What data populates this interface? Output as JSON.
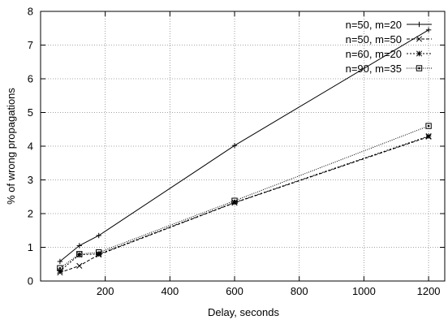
{
  "chart_data": {
    "type": "line",
    "xlabel": "Delay, seconds",
    "ylabel": "% of wrong propagations",
    "xlim": [
      0,
      1250
    ],
    "ylim": [
      0,
      8
    ],
    "xticks": [
      200,
      400,
      600,
      800,
      1000,
      1200
    ],
    "yticks": [
      0,
      1,
      2,
      3,
      4,
      5,
      6,
      7,
      8
    ],
    "grid": true,
    "legend_position": "top-right",
    "series": [
      {
        "name": "n=50, m=20",
        "marker": "plus",
        "dash": "solid",
        "color": "#000000",
        "x": [
          60,
          120,
          180,
          600,
          1200
        ],
        "y": [
          0.58,
          1.05,
          1.35,
          4.02,
          7.45
        ]
      },
      {
        "name": "n=50, m=50",
        "marker": "cross",
        "dash": "dashed",
        "color": "#000000",
        "x": [
          60,
          120,
          180,
          600,
          1200
        ],
        "y": [
          0.25,
          0.45,
          0.78,
          2.32,
          4.28
        ]
      },
      {
        "name": "n=60, m=20",
        "marker": "star",
        "dash": "short-dashed",
        "color": "#000000",
        "x": [
          60,
          120,
          180,
          600,
          1200
        ],
        "y": [
          0.3,
          0.78,
          0.8,
          2.33,
          4.3
        ]
      },
      {
        "name": "n=90, m=35",
        "marker": "square",
        "dash": "dotted",
        "color": "#000000",
        "x": [
          60,
          120,
          180,
          600,
          1200
        ],
        "y": [
          0.38,
          0.8,
          0.85,
          2.38,
          4.6
        ]
      }
    ]
  }
}
